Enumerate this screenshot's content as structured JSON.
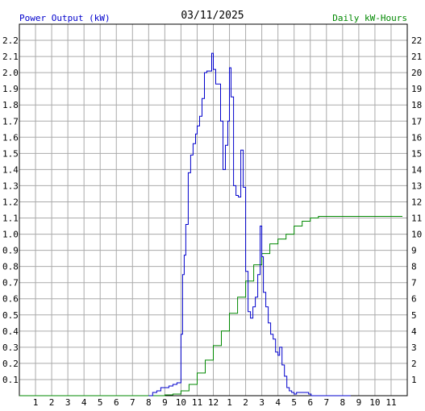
{
  "chart_data": {
    "type": "line",
    "title": "03/11/2025",
    "left_axis_label": "Power Output (kW)",
    "right_axis_label": "Daily kW-Hours",
    "colors": {
      "power": "#0000cc",
      "energy": "#008800",
      "left_label": "#0000cc",
      "right_label": "#008800",
      "grid": "#aaaaaa"
    },
    "grid": true,
    "x_ticks": [
      "1",
      "2",
      "3",
      "4",
      "5",
      "6",
      "7",
      "8",
      "9",
      "10",
      "11",
      "12",
      "1",
      "2",
      "3",
      "4",
      "5",
      "6",
      "7",
      "8",
      "9",
      "10",
      "11"
    ],
    "x_range_hours": [
      0,
      24
    ],
    "y_left_ticks": [
      "0.1",
      "0.2",
      "0.3",
      "0.4",
      "0.5",
      "0.6",
      "0.7",
      "0.8",
      "0.9",
      "1.0",
      "1.1",
      "1.2",
      "1.3",
      "1.4",
      "1.5",
      "1.6",
      "1.7",
      "1.8",
      "1.9",
      "2.0",
      "2.1",
      "2.2"
    ],
    "y_left_range": [
      0,
      2.3
    ],
    "y_right_ticks": [
      "1",
      "2",
      "3",
      "4",
      "5",
      "6",
      "7",
      "8",
      "9",
      "10",
      "11",
      "12",
      "13",
      "14",
      "15",
      "16",
      "17",
      "18",
      "19",
      "20",
      "21",
      "22"
    ],
    "y_right_range": [
      0,
      23
    ],
    "series": [
      {
        "name": "Power Output (kW)",
        "axis": "left",
        "x": [
          8.0,
          8.25,
          8.5,
          8.75,
          9.0,
          9.25,
          9.5,
          9.75,
          9.9,
          10.0,
          10.1,
          10.2,
          10.3,
          10.45,
          10.6,
          10.75,
          10.9,
          11.0,
          11.15,
          11.3,
          11.45,
          11.6,
          11.75,
          11.9,
          12.0,
          12.15,
          12.3,
          12.45,
          12.6,
          12.75,
          12.9,
          13.0,
          13.1,
          13.25,
          13.4,
          13.55,
          13.7,
          13.85,
          14.0,
          14.15,
          14.3,
          14.45,
          14.6,
          14.75,
          14.9,
          15.0,
          15.1,
          15.25,
          15.4,
          15.55,
          15.7,
          15.85,
          16.0,
          16.1,
          16.25,
          16.4,
          16.55,
          16.7,
          16.85,
          17.0,
          17.15,
          17.3,
          17.45,
          17.6,
          17.75,
          17.9,
          18.05,
          18.2,
          18.35,
          18.5,
          18.65,
          18.8,
          18.95,
          19.1,
          19.3,
          19.5,
          19.75,
          20.0,
          20.25,
          20.5
        ],
        "y": [
          0.0,
          0.02,
          0.03,
          0.05,
          0.05,
          0.06,
          0.07,
          0.08,
          0.08,
          0.38,
          0.75,
          0.87,
          1.06,
          1.38,
          1.49,
          1.56,
          1.62,
          1.67,
          1.73,
          1.84,
          2.0,
          2.01,
          2.01,
          2.12,
          2.02,
          1.93,
          1.93,
          1.7,
          1.4,
          1.55,
          1.7,
          2.03,
          1.85,
          1.3,
          1.24,
          1.23,
          1.52,
          1.29,
          0.77,
          0.52,
          0.48,
          0.55,
          0.61,
          0.75,
          1.05,
          0.86,
          0.64,
          0.55,
          0.45,
          0.38,
          0.35,
          0.27,
          0.25,
          0.3,
          0.19,
          0.12,
          0.05,
          0.03,
          0.02,
          0.01,
          0.02,
          0.02,
          0.02,
          0.02,
          0.02,
          0.01,
          0.0,
          0.0,
          0.0,
          0.0,
          0.0,
          0.0,
          0.0,
          0.0,
          0.0,
          0.0,
          0.0,
          0.0,
          0.0,
          0.0
        ]
      },
      {
        "name": "Daily kW-Hours",
        "axis": "right",
        "x": [
          0.0,
          8.0,
          9.0,
          9.5,
          10.0,
          10.5,
          11.0,
          11.5,
          12.0,
          12.5,
          13.0,
          13.5,
          14.0,
          14.5,
          15.0,
          15.5,
          16.0,
          16.5,
          17.0,
          17.5,
          18.0,
          18.5,
          19.0,
          20.0,
          22.0,
          23.7
        ],
        "y": [
          0.0,
          0.0,
          0.05,
          0.1,
          0.3,
          0.7,
          1.4,
          2.2,
          3.1,
          4.0,
          5.1,
          6.1,
          7.1,
          8.1,
          8.8,
          9.4,
          9.7,
          10.0,
          10.5,
          10.8,
          11.0,
          11.1,
          11.1,
          11.1,
          11.1,
          11.1
        ]
      }
    ]
  }
}
